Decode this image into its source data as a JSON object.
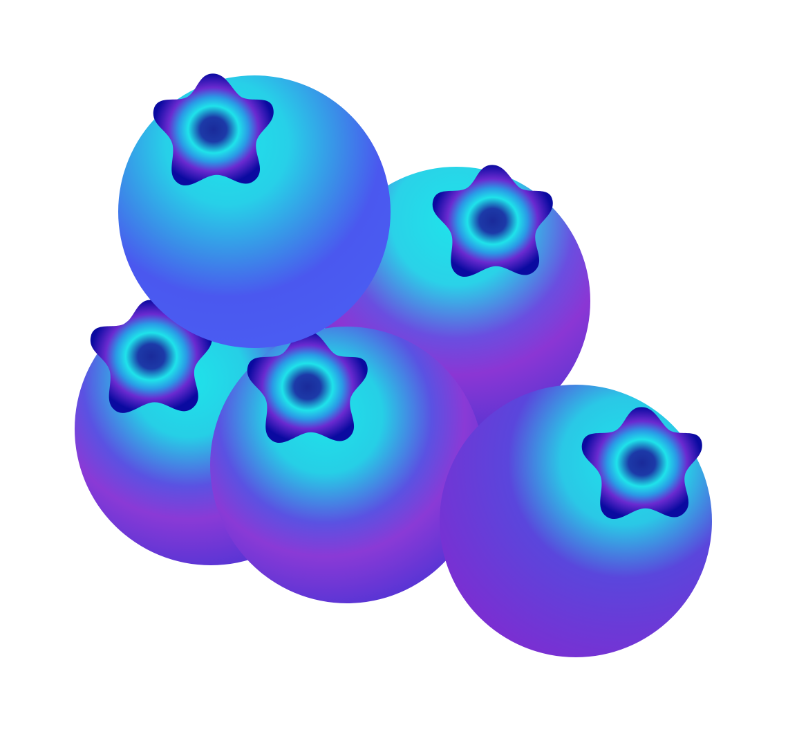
{
  "illustration": {
    "subject_icon": "blueberries-icon",
    "berries": [
      {
        "id": "rear-left",
        "crown": "berry-crown-icon"
      },
      {
        "id": "center-front",
        "crown": "berry-crown-icon"
      },
      {
        "id": "right-middle",
        "crown": "berry-crown-icon"
      },
      {
        "id": "top-left",
        "crown": "berry-crown-icon"
      },
      {
        "id": "bottom-right",
        "crown": "berry-crown-icon"
      }
    ]
  },
  "colors": {
    "background": "#ffffff",
    "cyan_highlight": "#1fe3ea",
    "skin_blue": "#4a58ef",
    "skin_indigo": "#4b33d4",
    "skin_purple": "#7a2fd2",
    "crown_navy": "#0a0aa0",
    "crown_core": "#1a2a9a"
  }
}
